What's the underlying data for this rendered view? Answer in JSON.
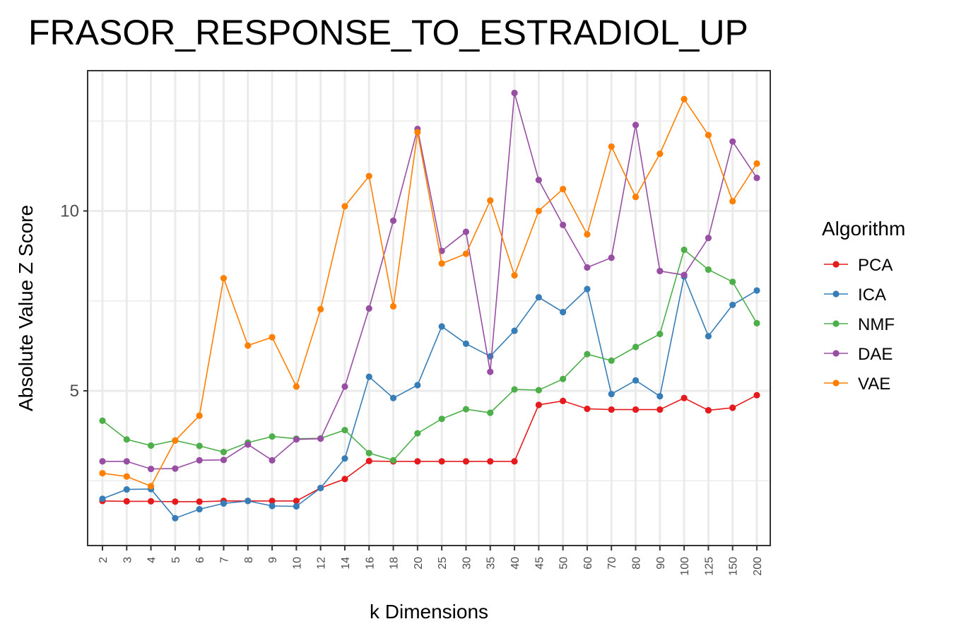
{
  "chart_data": {
    "type": "line",
    "title": "FRASOR_RESPONSE_TO_ESTRADIOL_UP",
    "xlabel": "k Dimensions",
    "ylabel": "Absolute Value Z Score",
    "categories": [
      "2",
      "3",
      "4",
      "5",
      "6",
      "7",
      "8",
      "9",
      "10",
      "12",
      "14",
      "16",
      "18",
      "20",
      "25",
      "30",
      "35",
      "40",
      "45",
      "50",
      "60",
      "70",
      "80",
      "90",
      "100",
      "125",
      "150",
      "200"
    ],
    "y_ticks": [
      5,
      10
    ],
    "ylim": [
      0.7,
      13.9
    ],
    "grid": true,
    "legend_title": "Algorithm",
    "legend_position": "right",
    "series": [
      {
        "name": "PCA",
        "color": "#e41a1c",
        "values": [
          1.94,
          1.93,
          1.93,
          1.92,
          1.92,
          1.94,
          1.94,
          1.94,
          1.94,
          2.3,
          2.55,
          3.05,
          3.04,
          3.04,
          3.04,
          3.04,
          3.04,
          3.04,
          4.61,
          4.72,
          4.5,
          4.48,
          4.48,
          4.48,
          4.8,
          4.46,
          4.53,
          4.88
        ]
      },
      {
        "name": "ICA",
        "color": "#377eb8",
        "values": [
          2.0,
          2.26,
          2.27,
          1.46,
          1.71,
          1.87,
          1.94,
          1.8,
          1.79,
          2.3,
          3.12,
          5.39,
          4.8,
          5.16,
          6.79,
          6.31,
          5.96,
          6.67,
          7.6,
          7.19,
          7.83,
          4.91,
          5.29,
          4.85,
          8.18,
          6.52,
          7.39,
          7.79
        ]
      },
      {
        "name": "NMF",
        "color": "#4daf4a",
        "values": [
          4.17,
          3.65,
          3.48,
          3.62,
          3.47,
          3.3,
          3.56,
          3.73,
          3.67,
          3.68,
          3.91,
          3.27,
          3.07,
          3.82,
          4.22,
          4.49,
          4.39,
          5.04,
          5.02,
          5.33,
          6.02,
          5.84,
          6.22,
          6.58,
          8.92,
          8.37,
          8.03,
          6.88
        ]
      },
      {
        "name": "DAE",
        "color": "#984ea3",
        "values": [
          3.04,
          3.04,
          2.83,
          2.84,
          3.07,
          3.08,
          3.51,
          3.07,
          3.65,
          3.67,
          5.12,
          7.29,
          9.73,
          12.28,
          8.89,
          9.42,
          5.53,
          13.28,
          10.86,
          9.61,
          8.43,
          8.7,
          12.39,
          8.33,
          8.22,
          9.25,
          11.93,
          10.92
        ]
      },
      {
        "name": "VAE",
        "color": "#ff7f00",
        "values": [
          2.71,
          2.62,
          2.35,
          3.62,
          4.31,
          8.13,
          6.26,
          6.49,
          5.12,
          7.27,
          10.13,
          10.97,
          7.35,
          12.19,
          8.54,
          8.81,
          10.29,
          8.21,
          10.0,
          10.61,
          9.35,
          11.79,
          10.39,
          11.59,
          13.11,
          12.11,
          10.27,
          11.32
        ]
      }
    ]
  }
}
